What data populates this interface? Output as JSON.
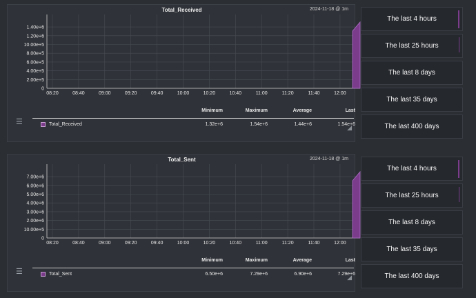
{
  "panels": [
    {
      "title": "Total_Received",
      "date": "2024-11-18 @ 1m",
      "y_ticks": [
        "1.40e+6",
        "1.20e+6",
        "10.00e+5",
        "8.00e+5",
        "6.00e+5",
        "4.00e+5",
        "2.00e+5",
        "0"
      ],
      "x_ticks": [
        "08:20",
        "08:40",
        "09:00",
        "09:20",
        "09:40",
        "10:00",
        "10:20",
        "10:40",
        "11:00",
        "11:20",
        "11:40",
        "12:00"
      ],
      "legend": {
        "headers": {
          "min": "Minimum",
          "max": "Maximum",
          "avg": "Average",
          "last": "Last"
        },
        "series": "Total_Received",
        "min": "1.32e+6",
        "max": "1.54e+6",
        "avg": "1.44e+6",
        "last": "1.54e+6"
      }
    },
    {
      "title": "Total_Sent",
      "date": "2024-11-18 @ 1m",
      "y_ticks": [
        "7.00e+6",
        "6.00e+6",
        "5.00e+6",
        "4.00e+6",
        "3.00e+6",
        "2.00e+6",
        "10.00e+5",
        "0"
      ],
      "x_ticks": [
        "08:20",
        "08:40",
        "09:00",
        "09:20",
        "09:40",
        "10:00",
        "10:20",
        "10:40",
        "11:00",
        "11:20",
        "11:40",
        "12:00"
      ],
      "legend": {
        "headers": {
          "min": "Minimum",
          "max": "Maximum",
          "avg": "Average",
          "last": "Last"
        },
        "series": "Total_Sent",
        "min": "6.50e+6",
        "max": "7.29e+6",
        "avg": "6.90e+6",
        "last": "7.29e+6"
      }
    }
  ],
  "timeframes": [
    [
      "The last 4 hours",
      "The last 25 hours",
      "The last 8 days",
      "The last 35 days",
      "The last 400 days"
    ],
    [
      "The last 4 hours",
      "The last 25 hours",
      "The last 8 days",
      "The last 35 days",
      "The last 400 days"
    ]
  ],
  "colors": {
    "series": "#7b3c8c",
    "series_edge": "#b070c8"
  }
}
